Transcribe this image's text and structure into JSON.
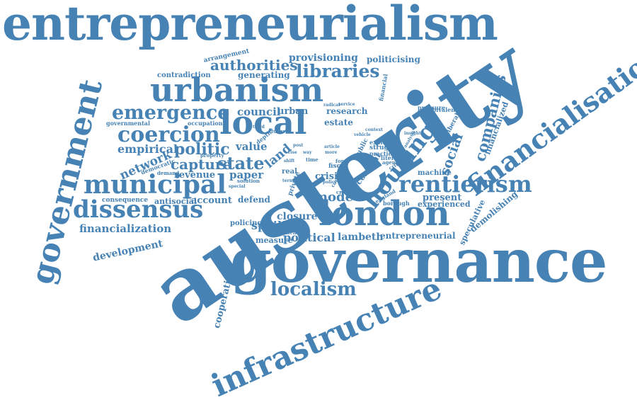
{
  "word_color": "#4682b4",
  "background_color": "#ffffff",
  "words": [
    "entrepreneurialism",
    "austerity",
    "governance",
    "government",
    "financialisation",
    "infrastructure",
    "urbanism",
    "london",
    "local",
    "municipal",
    "dissensus",
    "rentierism",
    "localism",
    "housing",
    "coercion",
    "emergence",
    "libraries",
    "authorities",
    "politic",
    "capture",
    "state",
    "network",
    "empirical",
    "financialization",
    "development",
    "provisioning",
    "politicising",
    "arrangement",
    "generating",
    "contradiction",
    "companies",
    "social",
    "financialized",
    "council",
    "urban",
    "research",
    "estate",
    "value",
    "land",
    "paper",
    "defend",
    "revenue",
    "consequence",
    "antisocial",
    "account",
    "policing",
    "spoiling",
    "closure",
    "mode",
    "political",
    "lambeth",
    "entrepreneurial",
    "measure",
    "moment",
    "present",
    "experienced",
    "demolishing",
    "speculative",
    "cooperative",
    "crisis",
    "fiscal",
    "consent",
    "machine",
    "borough",
    "pressure",
    "ambivalent",
    "neoliberal",
    "struggle",
    "practice",
    "literature",
    "explore",
    "public",
    "real",
    "democratic",
    "property",
    "demand",
    "governmental",
    "occupation",
    "depth",
    "future",
    "critical",
    "private",
    "solution",
    "special",
    "form",
    "agenda",
    "time",
    "critique",
    "england",
    "context",
    "vehicle",
    "insight",
    "analysis",
    "service",
    "radical",
    "financial",
    "policy",
    "article",
    "shift",
    "term",
    "more",
    "conclude",
    "post",
    "third",
    "rise",
    "way"
  ]
}
